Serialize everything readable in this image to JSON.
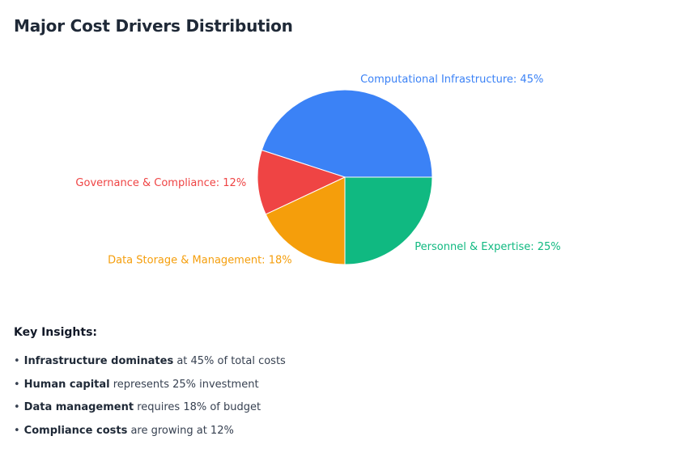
{
  "title": "Major Cost Drivers Distribution",
  "chart_data": {
    "type": "pie",
    "title": "Major Cost Drivers Distribution",
    "slices": [
      {
        "label": "Computational Infrastructure: 45%",
        "value": 45,
        "color": "#3b82f6"
      },
      {
        "label": "Governance & Compliance: 12%",
        "value": 12,
        "color": "#ef4444"
      },
      {
        "label": "Data Storage & Management: 18%",
        "value": 18,
        "color": "#f59e0b"
      },
      {
        "label": "Personnel & Expertise: 25%",
        "value": 25,
        "color": "#10b981"
      }
    ],
    "slice_border_color": "#ffffff"
  },
  "insights": {
    "heading": "Key Insights:",
    "bullet": "•",
    "items": [
      {
        "bold": "Infrastructure dominates",
        "rest": " at 45% of total costs"
      },
      {
        "bold": "Human capital",
        "rest": " represents 25% investment"
      },
      {
        "bold": "Data management",
        "rest": " requires 18% of budget"
      },
      {
        "bold": "Compliance costs",
        "rest": " are growing at 12%"
      }
    ]
  }
}
